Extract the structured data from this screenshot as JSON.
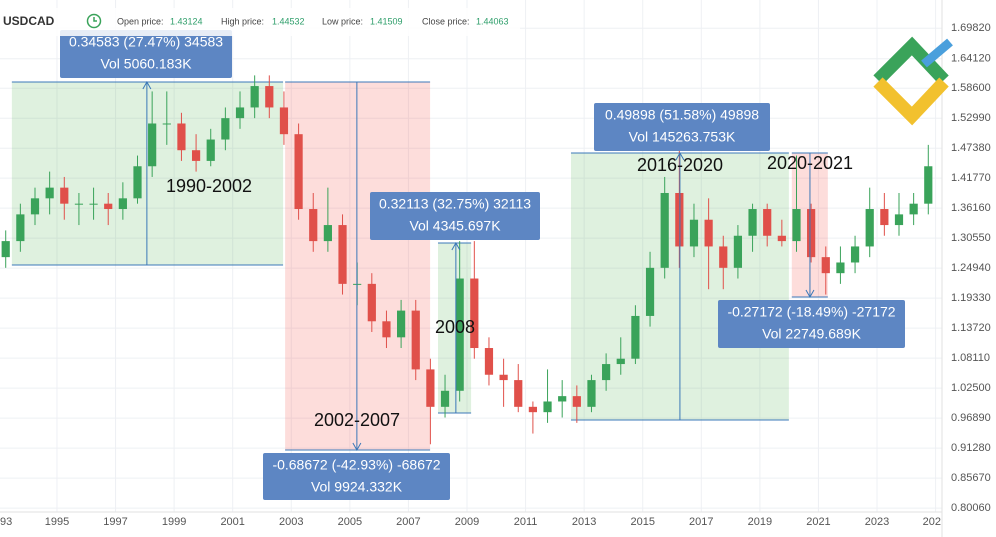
{
  "header": {
    "symbol": "USDCAD",
    "fields": [
      {
        "label": "Open price:",
        "value": "1.43124"
      },
      {
        "label": "High price:",
        "value": "1.44532"
      },
      {
        "label": "Low price:",
        "value": "1.41509"
      },
      {
        "label": "Close price:",
        "value": "1.44063"
      }
    ]
  },
  "chart_data": {
    "type": "candlestick",
    "x": [
      1993.25,
      1993.75,
      1994.25,
      1994.75,
      1995.25,
      1995.75,
      1996.25,
      1996.75,
      1997.25,
      1997.75,
      1998.25,
      1998.75,
      1999.25,
      1999.75,
      2000.25,
      2000.75,
      2001.25,
      2001.75,
      2002.25,
      2002.75,
      2003.25,
      2003.75,
      2004.25,
      2004.75,
      2005.25,
      2005.75,
      2006.25,
      2006.75,
      2007.25,
      2007.75,
      2008.25,
      2008.75,
      2009.25,
      2009.75,
      2010.25,
      2010.75,
      2011.25,
      2011.75,
      2012.25,
      2012.75,
      2013.25,
      2013.75,
      2014.25,
      2014.75,
      2015.25,
      2015.75,
      2016.25,
      2016.75,
      2017.25,
      2017.75,
      2018.25,
      2018.75,
      2019.25,
      2019.75,
      2020.25,
      2020.75,
      2021.25,
      2021.75,
      2022.25,
      2022.75,
      2023.25,
      2023.75,
      2024.25,
      2024.75
    ],
    "open": [
      1.27,
      1.3,
      1.35,
      1.38,
      1.4,
      1.37,
      1.37,
      1.37,
      1.36,
      1.38,
      1.44,
      1.52,
      1.52,
      1.47,
      1.45,
      1.49,
      1.53,
      1.55,
      1.59,
      1.55,
      1.5,
      1.36,
      1.3,
      1.33,
      1.22,
      1.22,
      1.15,
      1.12,
      1.17,
      1.06,
      0.99,
      1.02,
      1.23,
      1.1,
      1.05,
      1.04,
      0.99,
      0.98,
      1.0,
      1.01,
      0.99,
      1.04,
      1.07,
      1.08,
      1.16,
      1.25,
      1.39,
      1.29,
      1.34,
      1.29,
      1.25,
      1.31,
      1.36,
      1.31,
      1.3,
      1.36,
      1.27,
      1.24,
      1.26,
      1.29,
      1.36,
      1.33,
      1.35,
      1.37
    ],
    "high": [
      1.32,
      1.37,
      1.4,
      1.43,
      1.42,
      1.39,
      1.4,
      1.39,
      1.41,
      1.46,
      1.58,
      1.58,
      1.54,
      1.5,
      1.51,
      1.55,
      1.58,
      1.61,
      1.61,
      1.58,
      1.52,
      1.39,
      1.4,
      1.35,
      1.26,
      1.24,
      1.17,
      1.19,
      1.19,
      1.08,
      1.05,
      1.3,
      1.3,
      1.12,
      1.08,
      1.07,
      1.0,
      1.06,
      1.04,
      1.03,
      1.05,
      1.09,
      1.12,
      1.18,
      1.28,
      1.42,
      1.47,
      1.37,
      1.38,
      1.31,
      1.33,
      1.37,
      1.37,
      1.34,
      1.46,
      1.37,
      1.29,
      1.29,
      1.31,
      1.4,
      1.39,
      1.39,
      1.39,
      1.48
    ],
    "low": [
      1.25,
      1.28,
      1.33,
      1.35,
      1.34,
      1.33,
      1.34,
      1.33,
      1.34,
      1.37,
      1.42,
      1.48,
      1.45,
      1.43,
      1.44,
      1.47,
      1.51,
      1.53,
      1.53,
      1.48,
      1.34,
      1.28,
      1.28,
      1.2,
      1.18,
      1.13,
      1.1,
      1.1,
      1.04,
      0.92,
      0.97,
      1.0,
      1.08,
      1.03,
      0.99,
      0.98,
      0.94,
      0.96,
      0.97,
      0.96,
      0.98,
      1.02,
      1.05,
      1.07,
      1.14,
      1.23,
      1.25,
      1.27,
      1.21,
      1.21,
      1.23,
      1.28,
      1.29,
      1.29,
      1.28,
      1.26,
      1.2,
      1.22,
      1.24,
      1.27,
      1.31,
      1.31,
      1.33,
      1.35
    ],
    "close": [
      1.3,
      1.35,
      1.38,
      1.4,
      1.37,
      1.37,
      1.37,
      1.36,
      1.38,
      1.44,
      1.52,
      1.52,
      1.47,
      1.45,
      1.49,
      1.53,
      1.55,
      1.59,
      1.55,
      1.5,
      1.36,
      1.3,
      1.33,
      1.22,
      1.22,
      1.15,
      1.12,
      1.17,
      1.06,
      0.99,
      1.02,
      1.23,
      1.1,
      1.05,
      1.04,
      0.99,
      0.98,
      1.0,
      1.01,
      0.99,
      1.04,
      1.07,
      1.08,
      1.16,
      1.25,
      1.39,
      1.29,
      1.34,
      1.29,
      1.25,
      1.31,
      1.36,
      1.31,
      1.3,
      1.36,
      1.27,
      1.24,
      1.26,
      1.29,
      1.36,
      1.33,
      1.35,
      1.37,
      1.44
    ],
    "up_color": "#3aa35a",
    "down_color": "#e0504a",
    "xlim": [
      1993.055,
      2025.15
    ],
    "xticks": [
      {
        "value": 1993,
        "label": "93"
      },
      1995,
      1997,
      1999,
      2001,
      2003,
      2005,
      2007,
      2009,
      2011,
      2013,
      2015,
      2017,
      2019,
      2021,
      2023,
      {
        "value": 2025,
        "label": "202"
      }
    ],
    "ylim": [
      0.797,
      1.751
    ],
    "yticks": [
      {
        "value": 1.6982,
        "label": "1.69820"
      },
      {
        "value": 1.6412,
        "label": "1.64120"
      },
      {
        "value": 1.586,
        "label": "1.58600"
      },
      {
        "value": 1.5299,
        "label": "1.52990"
      },
      {
        "value": 1.4738,
        "label": "1.47380"
      },
      {
        "value": 1.4177,
        "label": "1.41770"
      },
      {
        "value": 1.3616,
        "label": "1.36160"
      },
      {
        "value": 1.3055,
        "label": "1.30550"
      },
      {
        "value": 1.2494,
        "label": "1.24940"
      },
      {
        "value": 1.1933,
        "label": "1.19330"
      },
      {
        "value": 1.1372,
        "label": "1.13720"
      },
      {
        "value": 1.0811,
        "label": "1.08110"
      },
      {
        "value": 1.025,
        "label": "1.02500"
      },
      {
        "value": 0.9689,
        "label": "0.96890"
      },
      {
        "value": 0.9128,
        "label": "0.91280"
      },
      {
        "value": 0.8567,
        "label": "0.85670"
      },
      {
        "value": 0.8006,
        "label": "0.80060"
      }
    ],
    "grid": true,
    "ranges": [
      {
        "label": "1990-2002",
        "x": [
          1993.46,
          2002.72
        ],
        "y": [
          1.2553,
          1.5976
        ],
        "arrow_x": 1998.07,
        "color": "#4caf50",
        "box": [
          "0.34583 (27.47%) 34583",
          "Vol 5060.183K"
        ]
      },
      {
        "label": "2002-2007",
        "x": [
          2002.79,
          2007.74
        ],
        "y": [
          1.5976,
          0.9092
        ],
        "arrow_x": 2005.24,
        "color": "#f44336",
        "box": [
          "-0.68672 (-42.93%) -68672",
          "Vol 9924.332K"
        ]
      },
      {
        "label": "2008",
        "x": [
          2008.01,
          2009.14
        ],
        "y": [
          0.9785,
          1.2965
        ],
        "arrow_x": 2008.62,
        "color": "#4caf50",
        "box": [
          "0.32113 (32.75%) 32113",
          "Vol 4345.697K"
        ]
      },
      {
        "label": "2016-2020",
        "x": [
          2012.55,
          2019.99
        ],
        "y": [
          0.9654,
          1.4648
        ],
        "arrow_x": 2016.27,
        "color": "#4caf50",
        "box": [
          "0.49898 (51.58%) 49898",
          "Vol 145263.753K"
        ]
      },
      {
        "label": "2020-2021",
        "x": [
          2020.09,
          2021.32
        ],
        "y": [
          1.4648,
          1.1954
        ],
        "arrow_x": 2020.71,
        "color": "#f44336",
        "box": [
          "-0.27172 (-18.49%) -27172",
          "Vol 22749.689K"
        ]
      }
    ]
  }
}
